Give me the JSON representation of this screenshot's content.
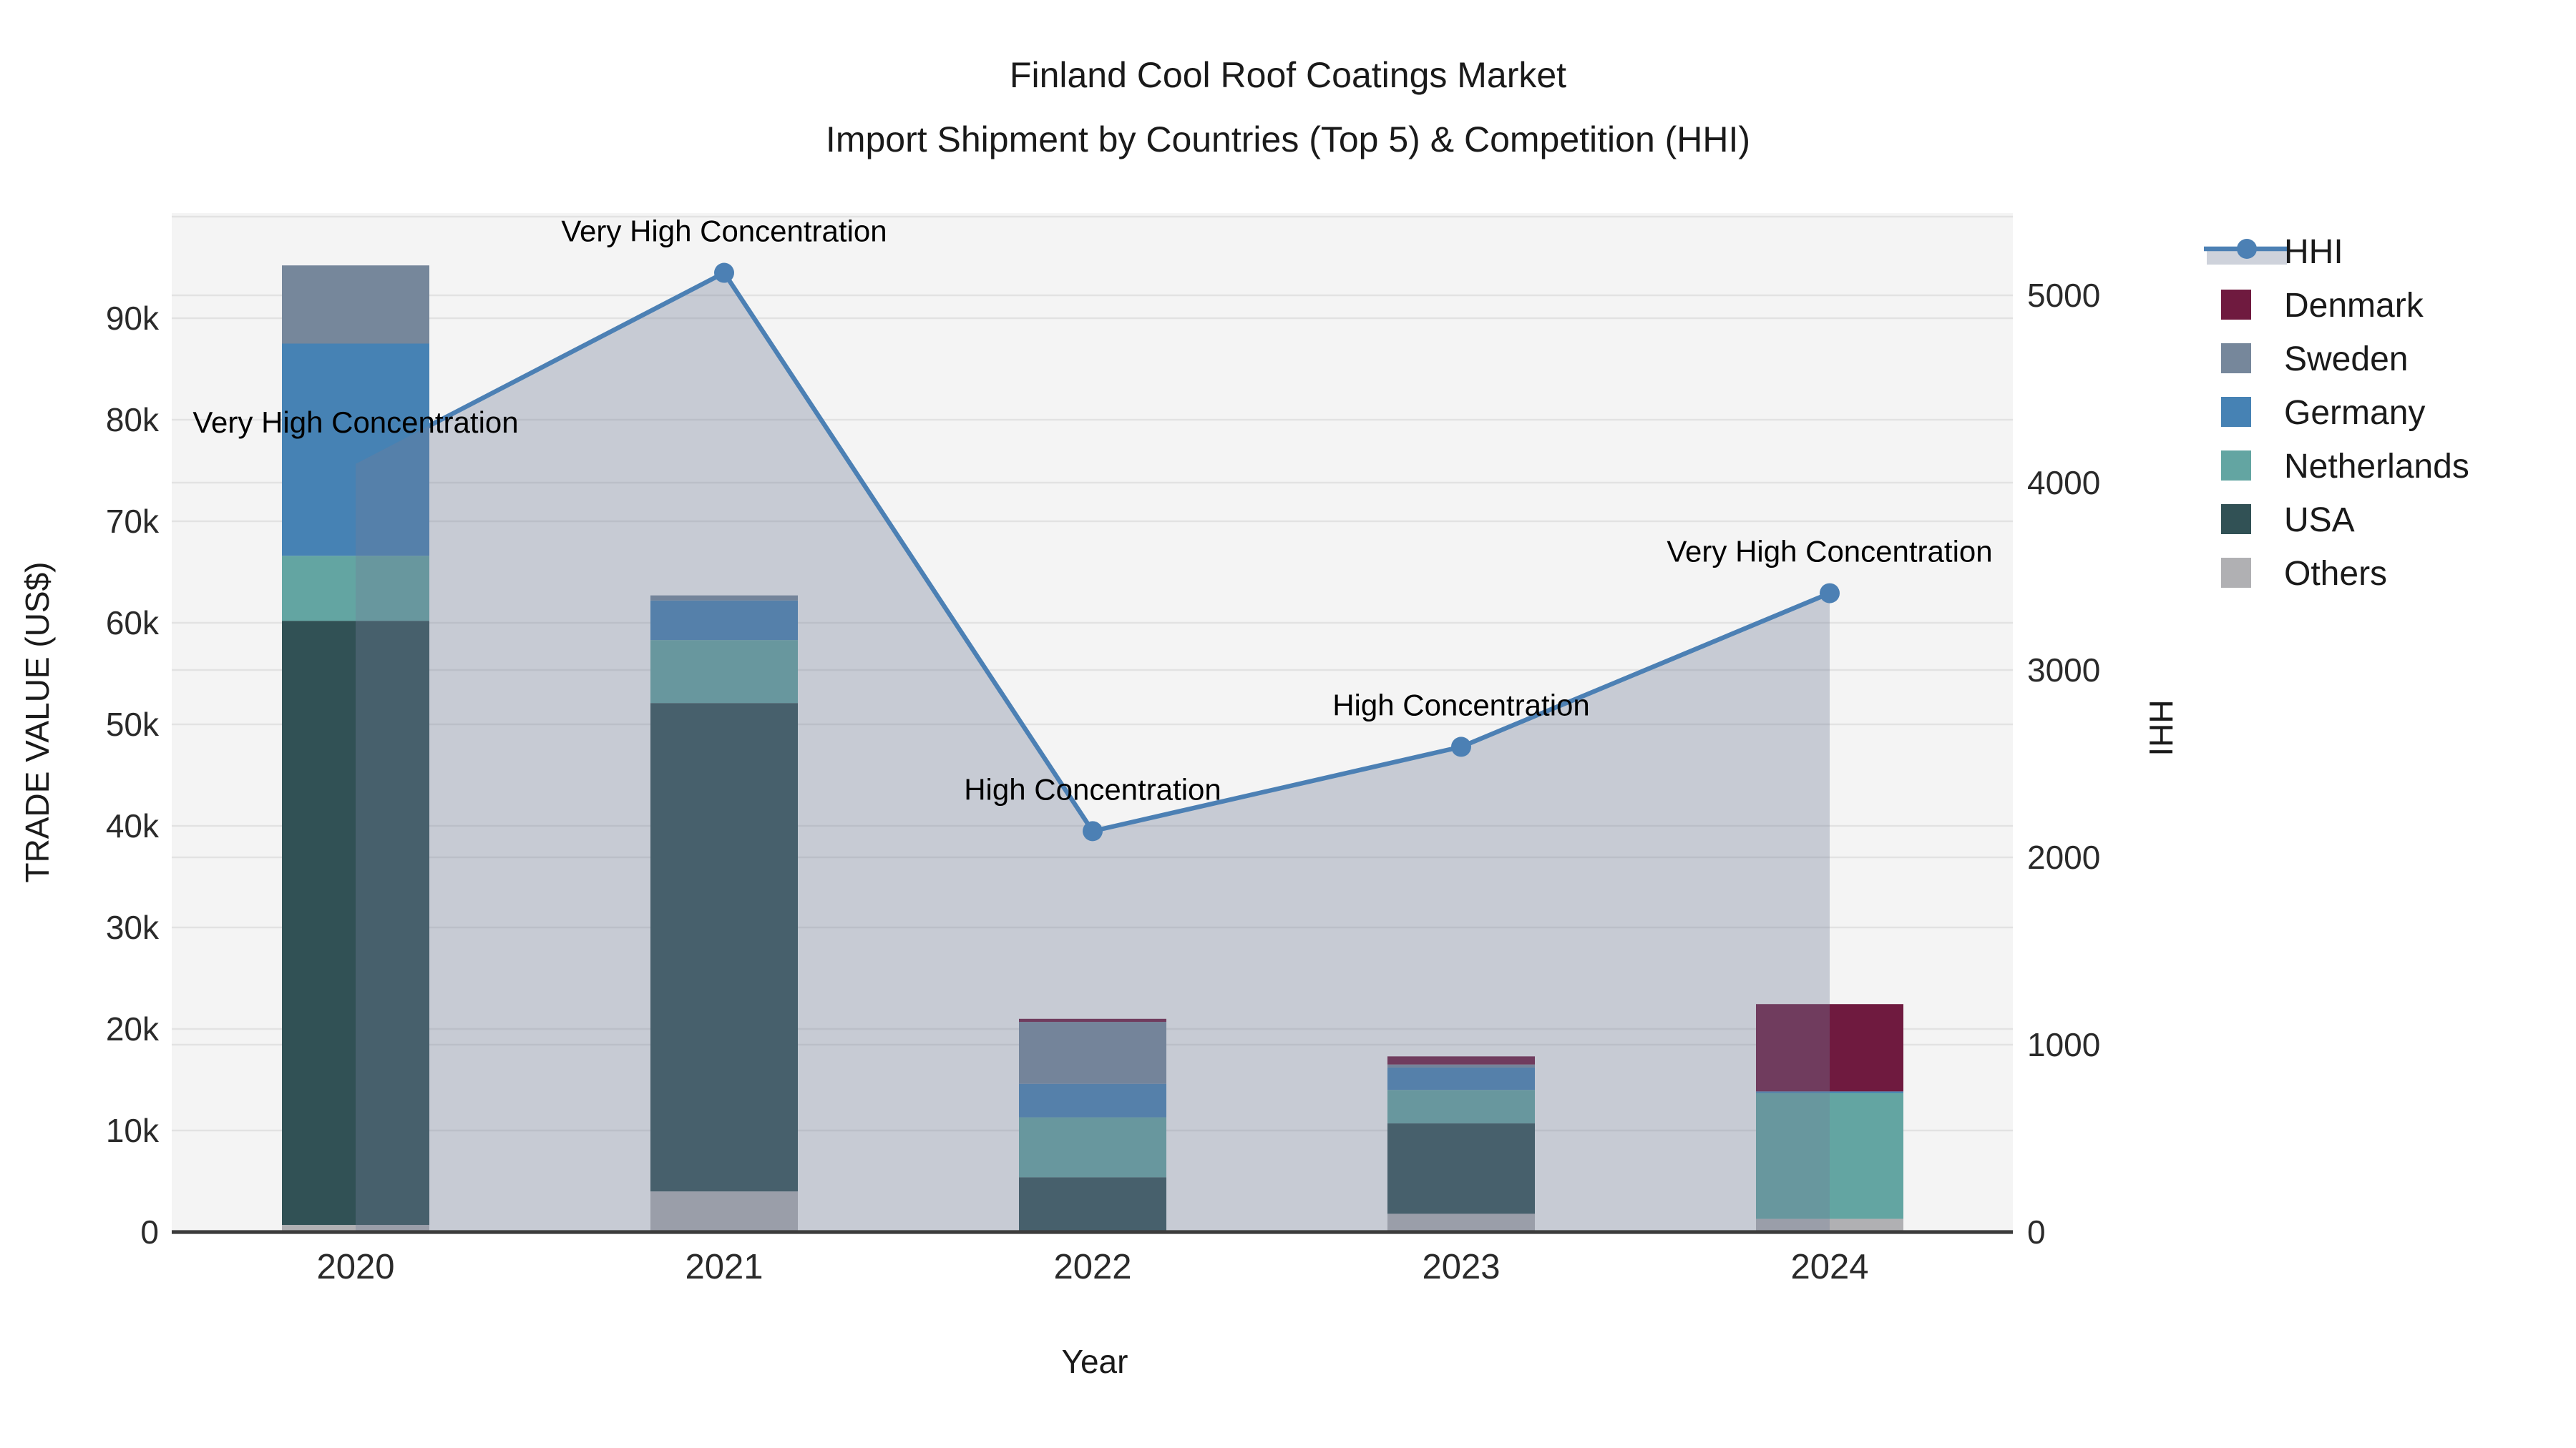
{
  "title": "Finland Cool Roof Coatings Market",
  "subtitle": "Import Shipment by Countries (Top 5) & Competition (HHI)",
  "chart_data": {
    "type": "combo-stacked-bar-line",
    "categories": [
      "2020",
      "2021",
      "2022",
      "2023",
      "2024"
    ],
    "xlabel": "Year",
    "y_left": {
      "label": "TRADE VALUE (US$)",
      "ticks": [
        "0",
        "10k",
        "20k",
        "30k",
        "40k",
        "50k",
        "60k",
        "70k",
        "80k",
        "90k"
      ],
      "tick_values": [
        0,
        10000,
        20000,
        30000,
        40000,
        50000,
        60000,
        70000,
        80000,
        90000
      ],
      "range": [
        0,
        100350
      ]
    },
    "y_right": {
      "label": "HHI",
      "ticks": [
        "0",
        "1000",
        "2000",
        "3000",
        "4000",
        "5000"
      ],
      "tick_values": [
        0,
        1000,
        2000,
        3000,
        4000,
        5000
      ],
      "range": [
        0,
        5440
      ]
    },
    "bar_series": [
      {
        "name": "Others",
        "color": "#B0B0B3",
        "values": [
          700,
          4000,
          0,
          1800,
          1300
        ]
      },
      {
        "name": "USA",
        "color": "#315155",
        "values": [
          59500,
          48100,
          5400,
          8900,
          0
        ]
      },
      {
        "name": "Netherlands",
        "color": "#63A5A2",
        "values": [
          6400,
          6200,
          5900,
          3300,
          12400
        ]
      },
      {
        "name": "Germany",
        "color": "#4682B4",
        "values": [
          20900,
          3900,
          3300,
          2200,
          150
        ]
      },
      {
        "name": "Sweden",
        "color": "#76879B",
        "values": [
          7700,
          500,
          6100,
          300,
          0
        ]
      },
      {
        "name": "Denmark",
        "color": "#6F1A3F",
        "values": [
          0,
          0,
          300,
          800,
          8600
        ]
      }
    ],
    "line_series": {
      "name": "HHI",
      "color": "#4C80B4",
      "area_fill": "rgba(115,127,153,0.35)",
      "values": [
        4100,
        5120,
        2140,
        2590,
        3410
      ]
    },
    "annotations": [
      {
        "x": "2020",
        "text": "Very High Concentration"
      },
      {
        "x": "2021",
        "text": "Very High Concentration"
      },
      {
        "x": "2022",
        "text": "High Concentration"
      },
      {
        "x": "2023",
        "text": "High Concentration"
      },
      {
        "x": "2024",
        "text": "Very High Concentration"
      }
    ],
    "legend": [
      "HHI",
      "Denmark",
      "Sweden",
      "Germany",
      "Netherlands",
      "USA",
      "Others"
    ],
    "plot_bg": "#F4F4F4",
    "grid_color": "#E2E2E2",
    "axisline_color": "#3C3C3C"
  }
}
